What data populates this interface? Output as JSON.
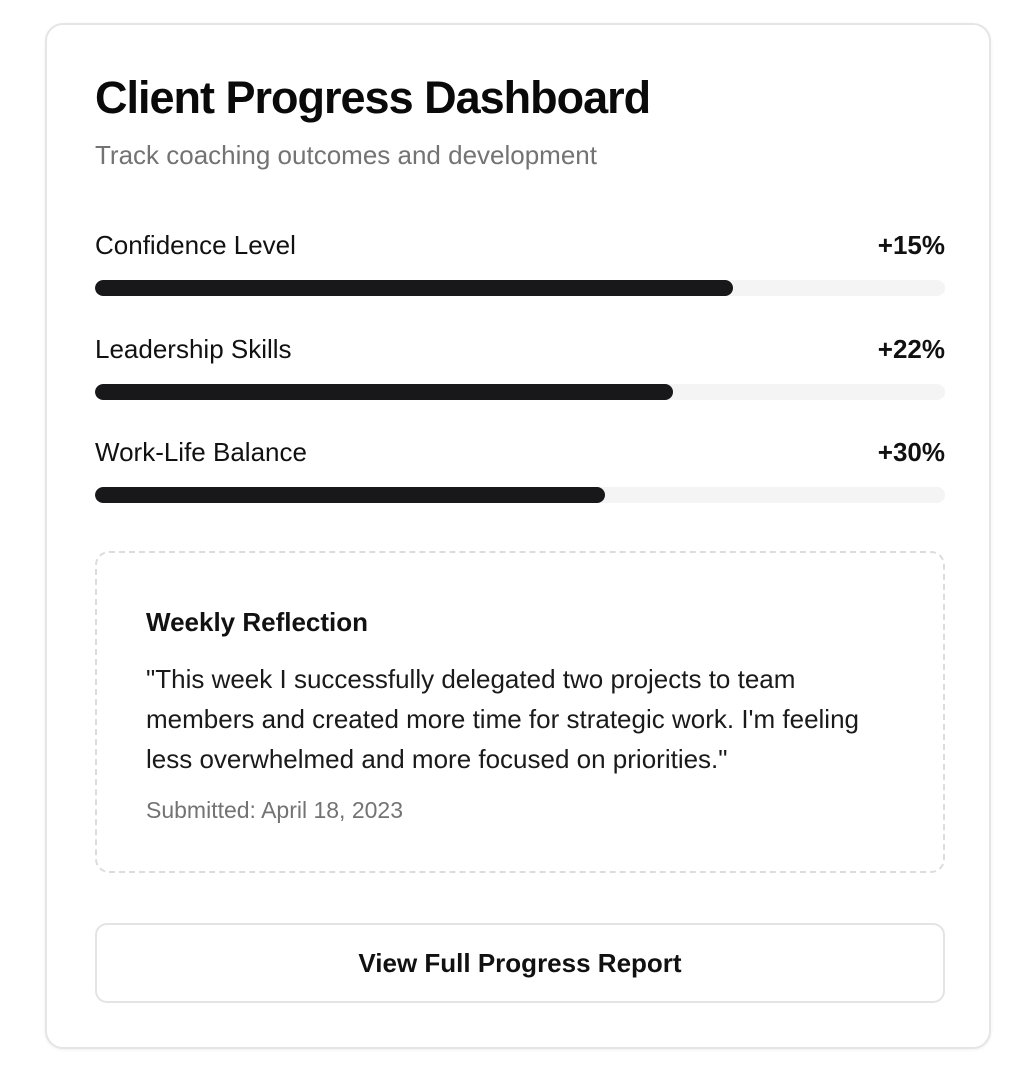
{
  "header": {
    "title": "Client Progress Dashboard",
    "subtitle": "Track coaching outcomes and development"
  },
  "metrics": [
    {
      "label": "Confidence Level",
      "change": "+15%",
      "progress": 0.75
    },
    {
      "label": "Leadership Skills",
      "change": "+22%",
      "progress": 0.68
    },
    {
      "label": "Work-Life Balance",
      "change": "+30%",
      "progress": 0.6
    }
  ],
  "reflection": {
    "title": "Weekly Reflection",
    "text": "\"This week I successfully delegated two projects to team members and created more time for strategic work. I'm feeling less overwhelmed and more focused on priorities.\"",
    "date": "Submitted: April 18, 2023"
  },
  "actions": {
    "report_label": "View Full Progress Report"
  },
  "colors": {
    "bar_fill": "#18181b",
    "bar_track": "#f4f4f5",
    "muted_text": "#737373"
  }
}
